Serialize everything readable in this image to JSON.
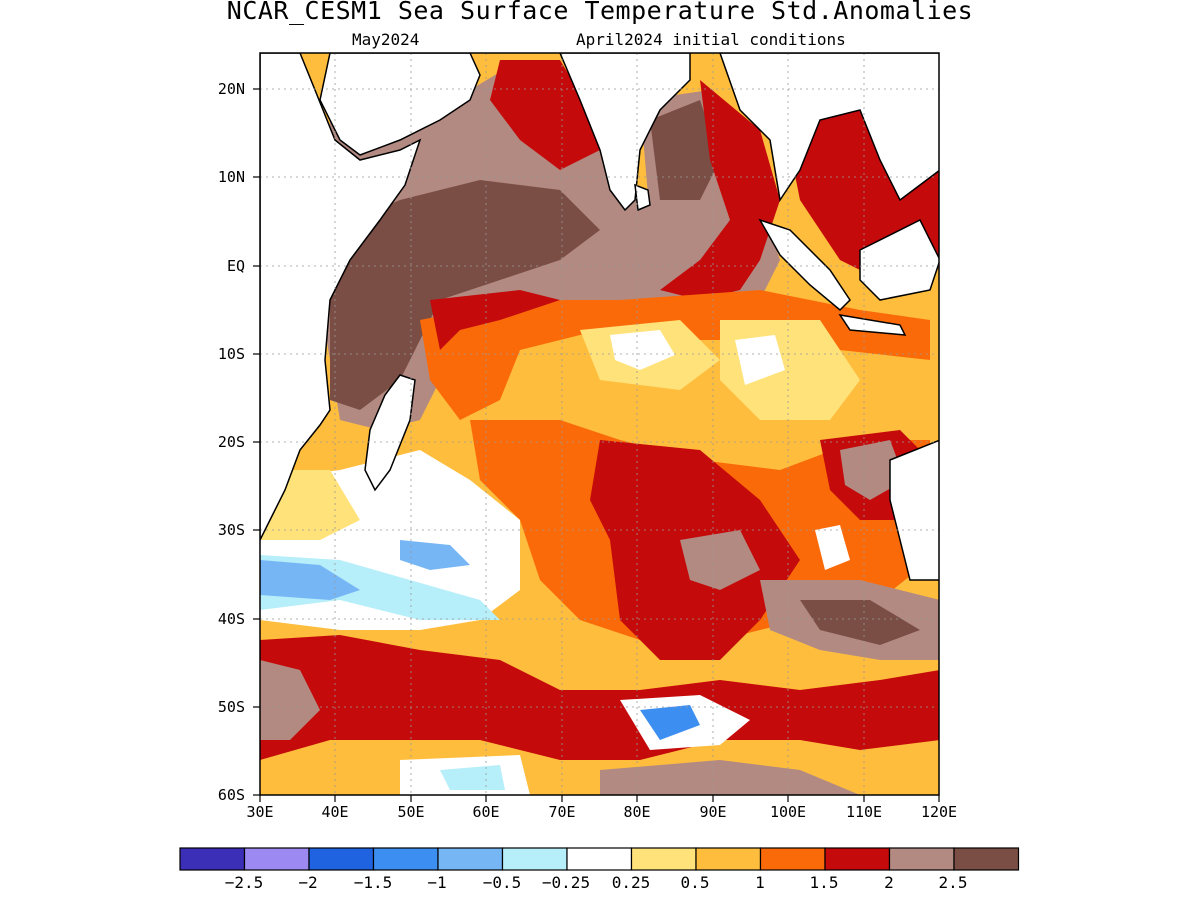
{
  "title": "NCAR_CESM1 Sea Surface Temperature Std.Anomalies",
  "subtitle_left": "May2024",
  "subtitle_right": "April2024 initial conditions",
  "axes": {
    "lat_labels": [
      "20N",
      "10N",
      "EQ",
      "10S",
      "20S",
      "30S",
      "40S",
      "50S",
      "60S"
    ],
    "lon_labels": [
      "30E",
      "40E",
      "50E",
      "60E",
      "70E",
      "80E",
      "90E",
      "100E",
      "110E",
      "120E"
    ],
    "lat_range": [
      -60,
      24
    ],
    "lon_range": [
      30,
      120
    ],
    "grid": "dotted"
  },
  "colorbar": {
    "colors": [
      "#3b2fb7",
      "#9c8af2",
      "#1f63e0",
      "#3c8ff0",
      "#76b6f5",
      "#b6eefa",
      "#ffffff",
      "#ffe27a",
      "#ffbd3d",
      "#fb6a09",
      "#c40a0a",
      "#b28a82",
      "#7a4e45"
    ],
    "labels": [
      "-2.5",
      "-2",
      "-1.5",
      "-1",
      "-0.5",
      "-0.25",
      "0.25",
      "0.5",
      "1",
      "1.5",
      "2",
      "2.5"
    ]
  },
  "land_color": "#ffffff"
}
